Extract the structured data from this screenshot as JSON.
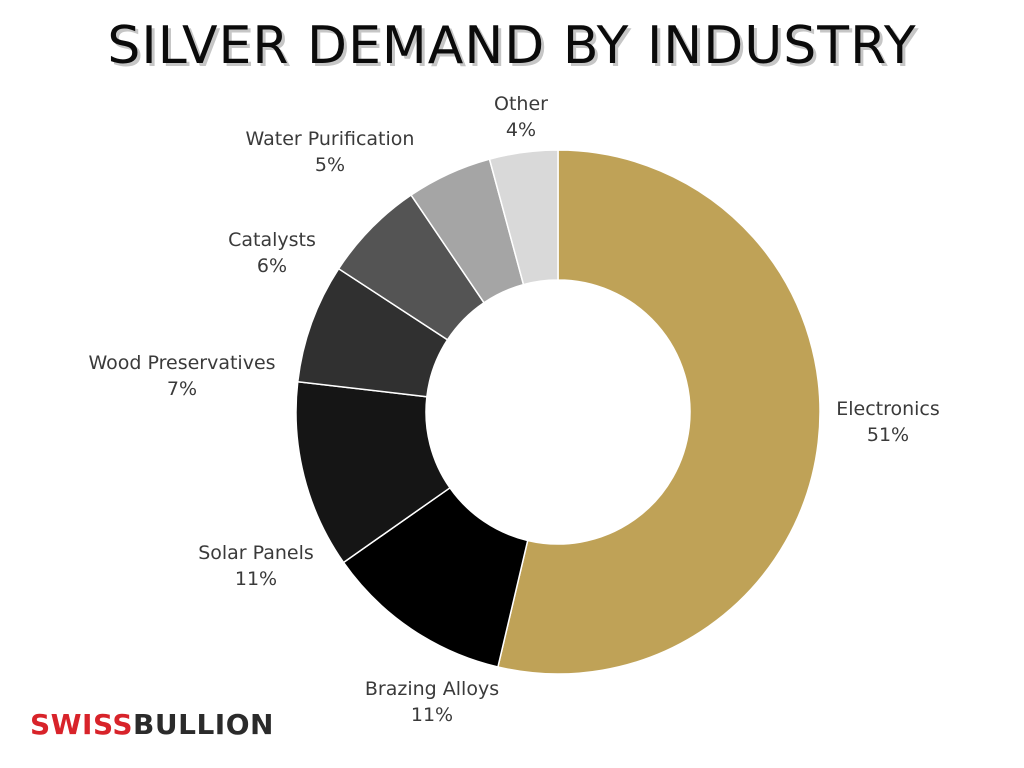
{
  "chart_data": {
    "type": "pie",
    "title": "SILVER DEMAND BY INDUSTRY",
    "donut": true,
    "slices": [
      {
        "label": "Electronics",
        "value": 51,
        "value_label": "51%",
        "color": "#bfa257"
      },
      {
        "label": "Brazing Alloys",
        "value": 11,
        "value_label": "11%",
        "color": "#000000"
      },
      {
        "label": "Solar Panels",
        "value": 11,
        "value_label": "11%",
        "color": "#151515"
      },
      {
        "label": "Wood Preservatives",
        "value": 7,
        "value_label": "7%",
        "color": "#303030"
      },
      {
        "label": "Catalysts",
        "value": 6,
        "value_label": "6%",
        "color": "#545454"
      },
      {
        "label": "Water Purification",
        "value": 5,
        "value_label": "5%",
        "color": "#777777"
      },
      {
        "label": "Other",
        "value": 4,
        "value_label": "4%",
        "color": "#a5a5a5"
      }
    ],
    "first_slice_color_override_note": "",
    "legend": "none"
  },
  "logo": {
    "part1": "SWISS",
    "part2": "BULLION",
    "part1_color": "#d8232a",
    "part2_color": "#2b2b2b"
  }
}
